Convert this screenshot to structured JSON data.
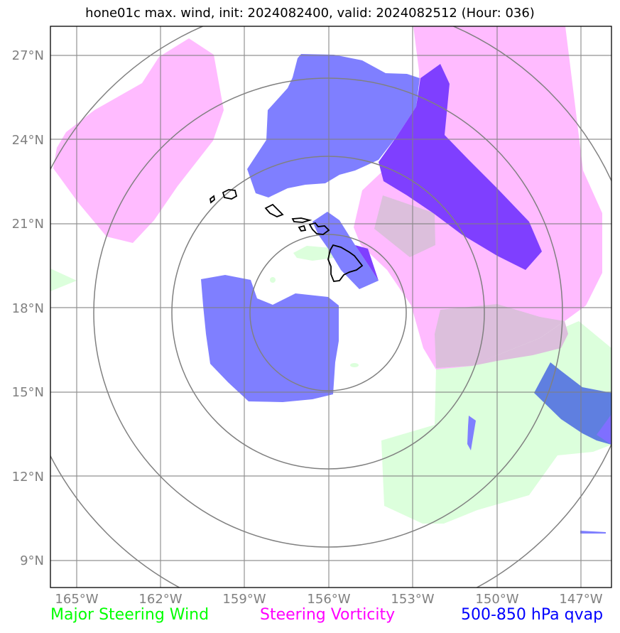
{
  "title": "hone01c max. wind, init: 2024082400, valid: 2024082512 (Hour: 036)",
  "lat_ticks": [
    "27°N",
    "24°N",
    "21°N",
    "18°N",
    "15°N",
    "12°N",
    "9°N"
  ],
  "lon_ticks": [
    "165°W",
    "162°W",
    "159°W",
    "156°W",
    "153°W",
    "150°W",
    "147°W"
  ],
  "legend": [
    {
      "label": "Major Steering Wind",
      "color": "#00ff00"
    },
    {
      "label": "Steering Vorticity",
      "color": "#ff00ff"
    },
    {
      "label": "500-850 hPa qvap",
      "color": "#0000ff"
    }
  ],
  "colors": {
    "wind_fill": "#dcffdc",
    "vorticity_fill": "#ffbbff",
    "qvap_fill": "#7f7fff",
    "overlap_fill": "#7f3fff",
    "grid": "#808080",
    "coastline": "#000000"
  }
}
